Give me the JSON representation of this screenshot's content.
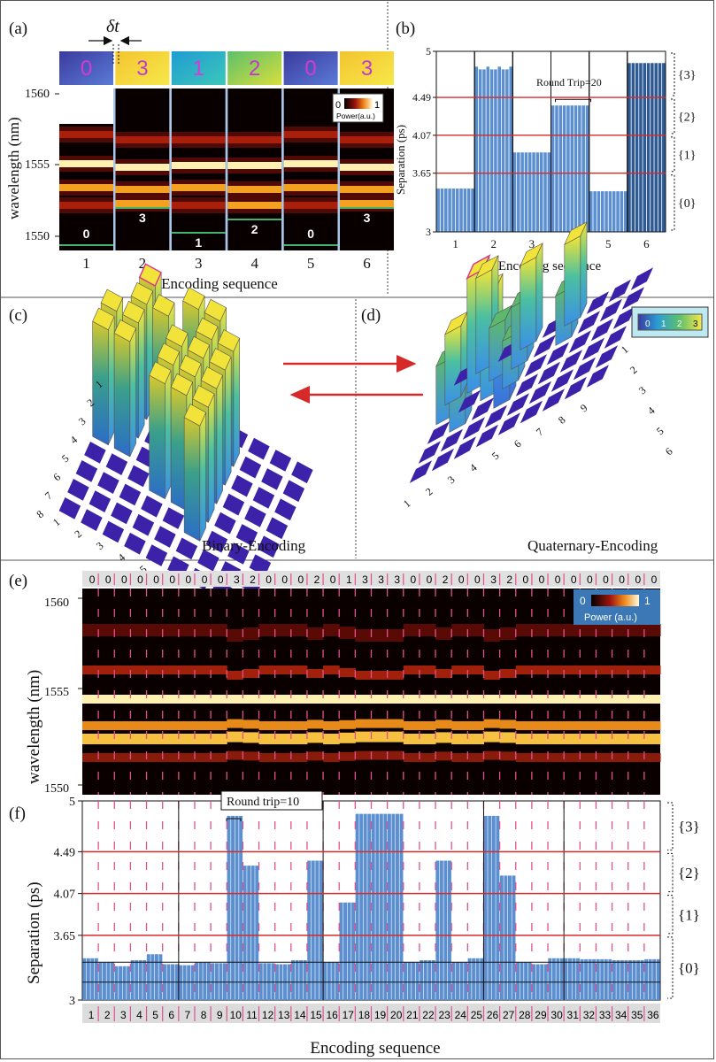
{
  "panel_labels": {
    "a": "(a)",
    "b": "(b)",
    "c": "(c)",
    "d": "(d)",
    "e": "(e)",
    "f": "(f)"
  },
  "panel_a": {
    "delta_t": "δt",
    "ylabel": "wavelength (nm)",
    "xlabel": "Encoding sequence",
    "y_ticks": [
      "1560",
      "1555",
      "1550"
    ],
    "top_codes": [
      "0",
      "3",
      "1",
      "2",
      "0",
      "3"
    ],
    "bottom_codes": [
      "0",
      "3",
      "1",
      "2",
      "0",
      "3"
    ],
    "x_ticks": [
      "1",
      "2",
      "3",
      "4",
      "5",
      "6"
    ],
    "bracket_label": "20",
    "colorbar_min": "0",
    "colorbar_max": "1",
    "colorbar_label": "Power(a.u.)"
  },
  "panel_b": {
    "ylabel": "Separation (ps)",
    "xlabel": "Encoding sequence",
    "y_ticks": [
      "5",
      "4.49",
      "4.07",
      "3.65",
      "3"
    ],
    "x_ticks": [
      "1",
      "2",
      "3",
      "4",
      "5",
      "6"
    ],
    "levels": [
      "{3}",
      "{2}",
      "{1}",
      "{0}"
    ],
    "annotation": "Round Trip=20",
    "thresholds": [
      3.65,
      4.07,
      4.49
    ],
    "segment_values": [
      3.48,
      4.8,
      3.88,
      4.4,
      3.45,
      4.87
    ]
  },
  "panel_c": {
    "label": "Binary-Encoding",
    "left_ticks": [
      "1",
      "2",
      "3",
      "4",
      "5",
      "6",
      "7",
      "8"
    ],
    "right_ticks": [
      "1",
      "2",
      "3",
      "4",
      "5",
      "6",
      "7",
      "8",
      "9"
    ]
  },
  "panel_d": {
    "label": "Quaternary-Encoding",
    "legend": [
      "0",
      "1",
      "2",
      "3"
    ],
    "right_ticks": [
      "1",
      "2",
      "3",
      "4",
      "5",
      "6",
      "7",
      "8",
      "9"
    ],
    "bottom_ticks": [
      "1",
      "2",
      "3",
      "4",
      "5",
      "6",
      "7",
      "8",
      "9"
    ]
  },
  "panel_e": {
    "ylabel": "wavelength (nm)",
    "y_ticks": [
      "1560",
      "1555",
      "1550"
    ],
    "codes": [
      "0",
      "0",
      "0",
      "0",
      "0",
      "0",
      "0",
      "0",
      "0",
      "3",
      "2",
      "0",
      "0",
      "0",
      "2",
      "0",
      "1",
      "3",
      "3",
      "3",
      "0",
      "0",
      "2",
      "0",
      "0",
      "3",
      "2",
      "0",
      "0",
      "0",
      "0",
      "0",
      "0",
      "0",
      "0",
      "0"
    ],
    "colorbar_min": "0",
    "colorbar_max": "1",
    "colorbar_label": "Power (a.u.)"
  },
  "panel_f": {
    "ylabel": "Separation (ps)",
    "xlabel": "Encoding sequence",
    "y_ticks": [
      "5",
      "4.49",
      "4.07",
      "3.65",
      "3"
    ],
    "levels": [
      "{3}",
      "{2}",
      "{1}",
      "{0}"
    ],
    "annotation": "Round trip=10",
    "x_ticks": [
      "1",
      "2",
      "3",
      "4",
      "5",
      "6",
      "7",
      "8",
      "9",
      "10",
      "11",
      "12",
      "13",
      "14",
      "15",
      "16",
      "17",
      "18",
      "19",
      "20",
      "21",
      "22",
      "23",
      "24",
      "25",
      "26",
      "27",
      "28",
      "29",
      "30",
      "31",
      "32",
      "33",
      "34",
      "35",
      "36"
    ],
    "thresholds": [
      3.65,
      4.07,
      4.49
    ],
    "segment_values": [
      3.42,
      3.38,
      3.34,
      3.4,
      3.46,
      3.36,
      3.35,
      3.38,
      3.37,
      4.85,
      4.35,
      3.37,
      3.36,
      3.4,
      4.4,
      3.38,
      3.98,
      4.87,
      4.87,
      4.87,
      3.38,
      3.4,
      4.4,
      3.38,
      3.42,
      4.85,
      4.25,
      3.38,
      3.36,
      3.42,
      3.42,
      3.41,
      3.41,
      3.4,
      3.4,
      3.41
    ]
  },
  "colors": {
    "bar": "#5b8fcf",
    "bar_dark": "#2e5a93",
    "threshold_line": "#d62a2a",
    "dashed_divider": "#e0518f",
    "arrow": "#d62a2a",
    "tile": "#3b22a8"
  }
}
